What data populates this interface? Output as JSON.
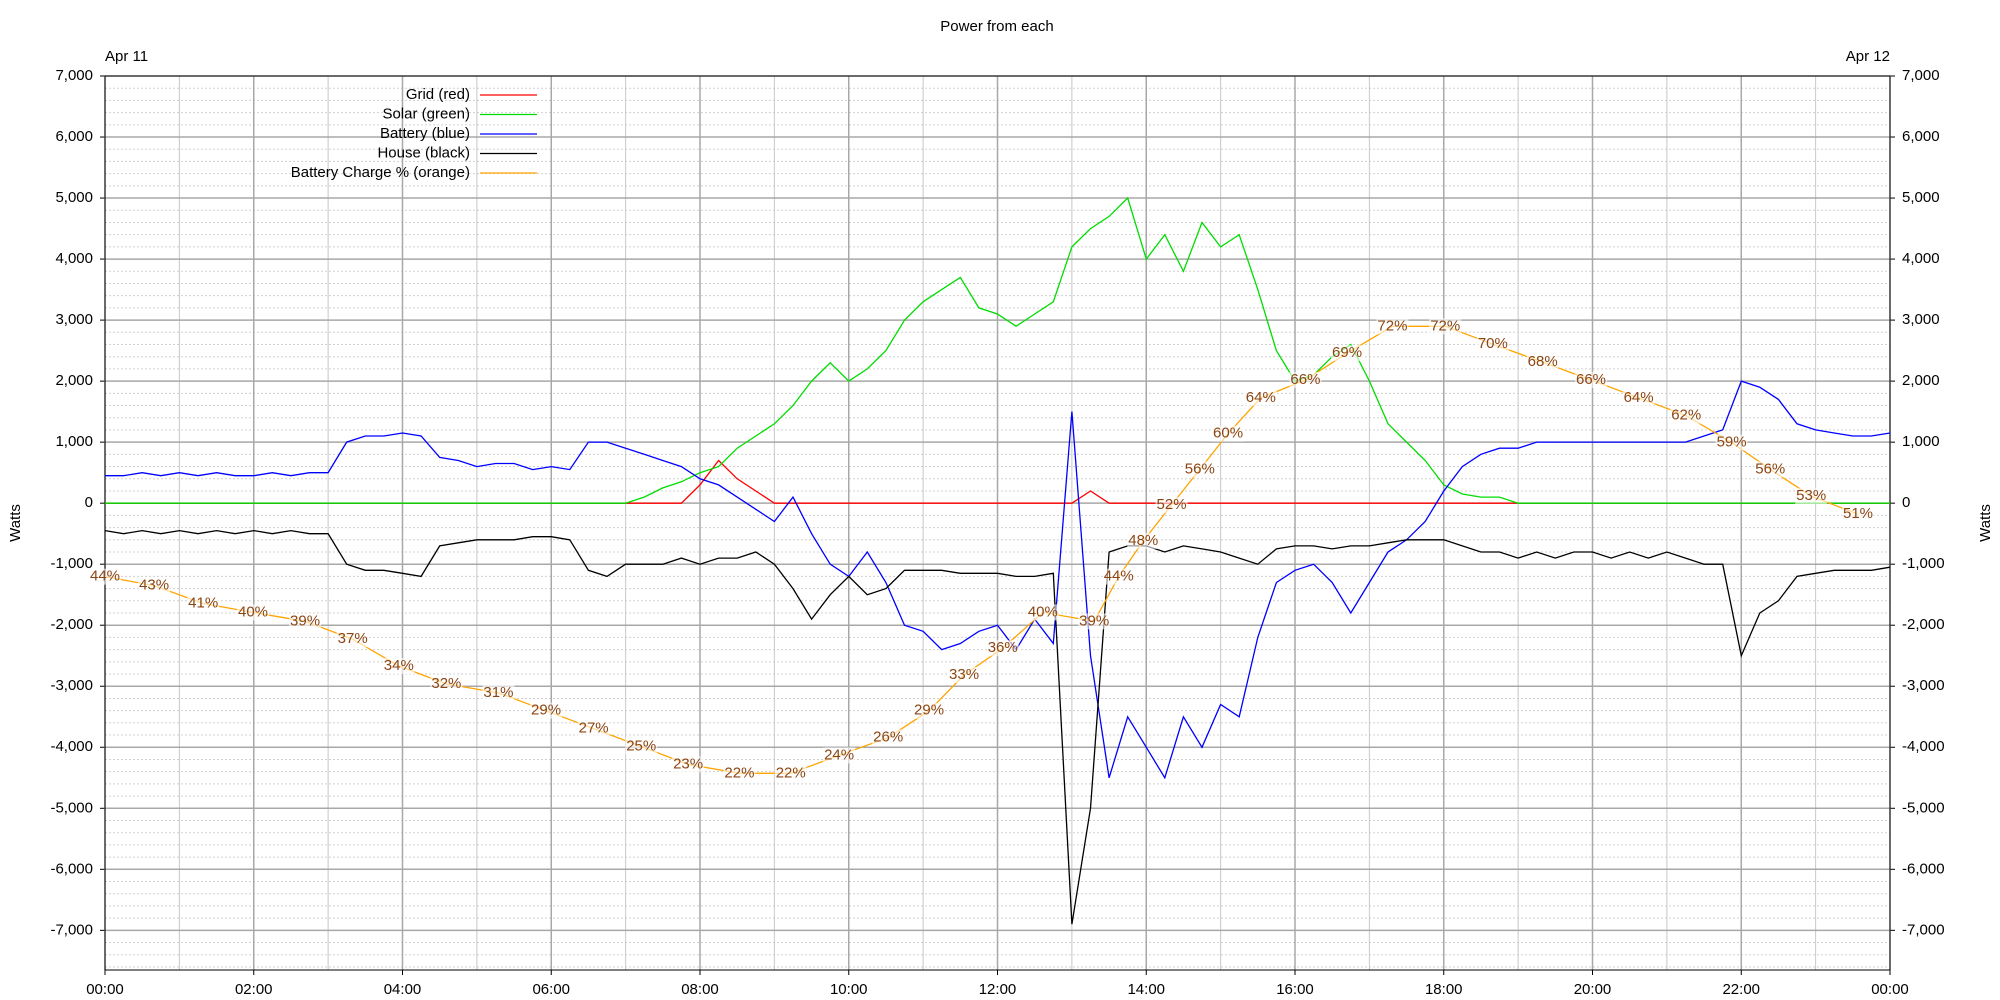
{
  "chart_data": {
    "type": "line",
    "title": "Power from each",
    "ylabel": "Watts",
    "annotations": [
      {
        "text": "Apr 11",
        "x": 0
      },
      {
        "text": "Apr 12",
        "x": 24
      }
    ],
    "legend": "top-left",
    "grid": true,
    "xlim": [
      0,
      24
    ],
    "xticks": [
      {
        "value": 0,
        "label": "00:00"
      },
      {
        "value": 2,
        "label": "02:00"
      },
      {
        "value": 4,
        "label": "04:00"
      },
      {
        "value": 6,
        "label": "06:00"
      },
      {
        "value": 8,
        "label": "08:00"
      },
      {
        "value": 10,
        "label": "10:00"
      },
      {
        "value": 12,
        "label": "12:00"
      },
      {
        "value": 14,
        "label": "14:00"
      },
      {
        "value": 16,
        "label": "16:00"
      },
      {
        "value": 18,
        "label": "18:00"
      },
      {
        "value": 20,
        "label": "20:00"
      },
      {
        "value": 22,
        "label": "22:00"
      },
      {
        "value": 24,
        "label": "00:00"
      }
    ],
    "ylim": [
      -7650,
      7000
    ],
    "yticks": [
      {
        "value": -7000,
        "label": "-7,000"
      },
      {
        "value": -6000,
        "label": "-6,000"
      },
      {
        "value": -5000,
        "label": "-5,000"
      },
      {
        "value": -4000,
        "label": "-4,000"
      },
      {
        "value": -3000,
        "label": "-3,000"
      },
      {
        "value": -2000,
        "label": "-2,000"
      },
      {
        "value": -1000,
        "label": "-1,000"
      },
      0,
      {
        "value": 1000,
        "label": "1,000"
      },
      {
        "value": 2000,
        "label": "2,000"
      },
      {
        "value": 3000,
        "label": "3,000"
      },
      {
        "value": 4000,
        "label": "4,000"
      },
      {
        "value": 5000,
        "label": "5,000"
      },
      {
        "value": 6000,
        "label": "6,000"
      },
      {
        "value": 7000,
        "label": "7,000"
      }
    ],
    "y2lim": [
      0,
      100
    ],
    "x": [
      0,
      0.25,
      0.5,
      0.75,
      1,
      1.25,
      1.5,
      1.75,
      2,
      2.25,
      2.5,
      2.75,
      3,
      3.25,
      3.5,
      3.75,
      4,
      4.25,
      4.5,
      4.75,
      5,
      5.25,
      5.5,
      5.75,
      6,
      6.25,
      6.5,
      6.75,
      7,
      7.25,
      7.5,
      7.75,
      8,
      8.25,
      8.5,
      8.75,
      9,
      9.25,
      9.5,
      9.75,
      10,
      10.25,
      10.5,
      10.75,
      11,
      11.25,
      11.5,
      11.75,
      12,
      12.25,
      12.5,
      12.75,
      13,
      13.25,
      13.5,
      13.75,
      14,
      14.25,
      14.5,
      14.75,
      15,
      15.25,
      15.5,
      15.75,
      16,
      16.25,
      16.5,
      16.75,
      17,
      17.25,
      17.5,
      17.75,
      18,
      18.25,
      18.5,
      18.75,
      19,
      19.25,
      19.5,
      19.75,
      20,
      20.25,
      20.5,
      20.75,
      21,
      21.25,
      21.5,
      21.75,
      22,
      22.25,
      22.5,
      22.75,
      23,
      23.25,
      23.5,
      23.75,
      24
    ],
    "series": [
      {
        "name": "Grid (red)",
        "color": "#ff0000",
        "values": [
          0,
          0,
          0,
          0,
          0,
          0,
          0,
          0,
          0,
          0,
          0,
          0,
          0,
          0,
          0,
          0,
          0,
          0,
          0,
          0,
          0,
          0,
          0,
          0,
          0,
          0,
          0,
          0,
          0,
          0,
          0,
          0,
          300,
          700,
          400,
          200,
          0,
          0,
          0,
          0,
          0,
          0,
          0,
          0,
          0,
          0,
          0,
          0,
          0,
          0,
          0,
          0,
          0,
          200,
          0,
          0,
          0,
          0,
          0,
          0,
          0,
          0,
          0,
          0,
          0,
          0,
          0,
          0,
          0,
          0,
          0,
          0,
          0,
          0,
          0,
          0,
          0,
          0,
          0,
          0,
          0,
          0,
          0,
          0,
          0,
          0,
          0,
          0,
          0,
          0,
          0,
          0,
          0,
          0,
          0,
          0,
          0
        ]
      },
      {
        "name": "Solar (green)",
        "color": "#00dd00",
        "values": [
          0,
          0,
          0,
          0,
          0,
          0,
          0,
          0,
          0,
          0,
          0,
          0,
          0,
          0,
          0,
          0,
          0,
          0,
          0,
          0,
          0,
          0,
          0,
          0,
          0,
          0,
          0,
          0,
          0,
          100,
          250,
          350,
          500,
          600,
          900,
          1100,
          1300,
          1600,
          2000,
          2300,
          2000,
          2200,
          2500,
          3000,
          3300,
          3500,
          3700,
          3200,
          3100,
          2900,
          3100,
          3300,
          4200,
          4500,
          4700,
          5000,
          4000,
          4400,
          3800,
          4600,
          4200,
          4400,
          3500,
          2500,
          2000,
          2100,
          2400,
          2600,
          2000,
          1300,
          1000,
          700,
          300,
          150,
          100,
          100,
          0,
          0,
          0,
          0,
          0,
          0,
          0,
          0,
          0,
          0,
          0,
          0,
          0,
          0,
          0,
          0,
          0,
          0,
          0,
          0,
          0
        ]
      },
      {
        "name": "Battery (blue)",
        "color": "#0000ff",
        "values": [
          450,
          450,
          500,
          450,
          500,
          450,
          500,
          450,
          450,
          500,
          450,
          500,
          500,
          1000,
          1100,
          1100,
          1150,
          1100,
          750,
          700,
          600,
          650,
          650,
          550,
          600,
          550,
          1000,
          1000,
          900,
          800,
          700,
          600,
          400,
          300,
          100,
          -100,
          -300,
          100,
          -500,
          -1000,
          -1200,
          -800,
          -1300,
          -2000,
          -2100,
          -2400,
          -2300,
          -2100,
          -2000,
          -2400,
          -1900,
          -2300,
          1500,
          -2500,
          -4500,
          -3500,
          -4000,
          -4500,
          -3500,
          -4000,
          -3300,
          -3500,
          -2200,
          -1300,
          -1100,
          -1000,
          -1300,
          -1800,
          -1300,
          -800,
          -600,
          -300,
          200,
          600,
          800,
          900,
          900,
          1000,
          1000,
          1000,
          1000,
          1000,
          1000,
          1000,
          1000,
          1000,
          1100,
          1200,
          2000,
          1900,
          1700,
          1300,
          1200,
          1150,
          1100,
          1100,
          1150
        ]
      },
      {
        "name": "House (black)",
        "color": "#000000",
        "values": [
          -450,
          -500,
          -450,
          -500,
          -450,
          -500,
          -450,
          -500,
          -450,
          -500,
          -450,
          -500,
          -500,
          -1000,
          -1100,
          -1100,
          -1150,
          -1200,
          -700,
          -650,
          -600,
          -600,
          -600,
          -550,
          -550,
          -600,
          -1100,
          -1200,
          -1000,
          -1000,
          -1000,
          -900,
          -1000,
          -900,
          -900,
          -800,
          -1000,
          -1400,
          -1900,
          -1500,
          -1200,
          -1500,
          -1400,
          -1100,
          -1100,
          -1100,
          -1150,
          -1150,
          -1150,
          -1200,
          -1200,
          -1150,
          -6900,
          -5000,
          -800,
          -700,
          -700,
          -800,
          -700,
          -750,
          -800,
          -900,
          -1000,
          -750,
          -700,
          -700,
          -750,
          -700,
          -700,
          -650,
          -600,
          -600,
          -600,
          -700,
          -800,
          -800,
          -900,
          -800,
          -900,
          -800,
          -800,
          -900,
          -800,
          -900,
          -800,
          -900,
          -1000,
          -1000,
          -2500,
          -1800,
          -1600,
          -1200,
          -1150,
          -1100,
          -1100,
          -1100,
          -1050
        ]
      },
      {
        "name": "Battery Charge % (orange)",
        "color": "#ffa500",
        "label_color": "#8b4513",
        "axis": "y2",
        "x": [
          0,
          0.66,
          1.32,
          1.99,
          2.69,
          3.33,
          3.95,
          4.59,
          5.29,
          5.93,
          6.57,
          7.21,
          7.84,
          8.53,
          9.22,
          9.87,
          10.53,
          11.08,
          11.55,
          12.07,
          12.61,
          13.3,
          13.63,
          13.96,
          14.34,
          14.72,
          15.1,
          15.54,
          16.14,
          16.7,
          17.31,
          18.02,
          18.66,
          19.33,
          19.98,
          20.62,
          21.26,
          21.87,
          22.39,
          22.94,
          23.57
        ],
        "values": [
          44,
          43,
          41,
          40,
          39,
          37,
          34,
          32,
          31,
          29,
          27,
          25,
          23,
          22,
          22,
          24,
          26,
          29,
          33,
          36,
          40,
          39,
          44,
          48,
          52,
          56,
          60,
          64,
          66,
          69,
          72,
          72,
          70,
          68,
          66,
          64,
          62,
          59,
          56,
          53,
          51
        ],
        "value_labels": [
          "44%",
          "43%",
          "41%",
          "40%",
          "39%",
          "37%",
          "34%",
          "32%",
          "31%",
          "29%",
          "27%",
          "25%",
          "23%",
          "22%",
          "22%",
          "24%",
          "26%",
          "29%",
          "33%",
          "36%",
          "40%",
          "39%",
          "44%",
          "48%",
          "52%",
          "56%",
          "60%",
          "64%",
          "66%",
          "69%",
          "72%",
          "72%",
          "70%",
          "68%",
          "66%",
          "64%",
          "62%",
          "59%",
          "56%",
          "53%",
          "51%"
        ]
      }
    ]
  }
}
